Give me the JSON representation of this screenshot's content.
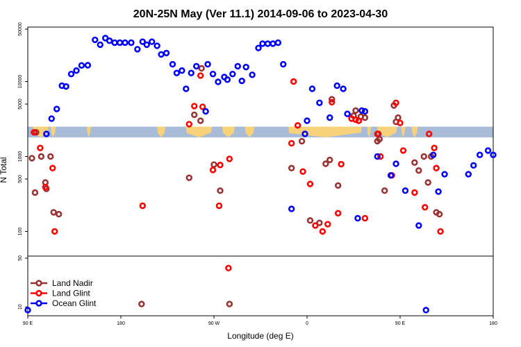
{
  "chart_data": {
    "type": "scatter",
    "title": "20N-25N May (Ver 11.1)   2014-09-06 to 2023-04-30",
    "xlabel": "Longitude (deg E)",
    "ylabel": "N Total",
    "x_ticks": [
      {
        "value": 90,
        "label": "90 E"
      },
      {
        "value": 180,
        "label": "180"
      },
      {
        "value": 270,
        "label": "90 W"
      },
      {
        "value": 360,
        "label": "0"
      },
      {
        "value": 450,
        "label": "90 E"
      },
      {
        "value": 540,
        "label": "180"
      }
    ],
    "xlim": [
      90,
      540
    ],
    "upper_panel": {
      "scale": "log",
      "ylim": [
        50,
        50000
      ],
      "y_ticks": [
        {
          "value": 100,
          "label": "100"
        },
        {
          "value": 500,
          "label": "500"
        },
        {
          "value": 1000,
          "label": "1000"
        },
        {
          "value": 5000,
          "label": "5000"
        },
        {
          "value": 10000,
          "label": "10000"
        },
        {
          "value": 50000,
          "label": "50000"
        }
      ]
    },
    "lower_panel": {
      "scale": "log",
      "ylim": [
        8,
        50
      ],
      "y_ticks": [
        {
          "value": 10,
          "label": "10"
        },
        {
          "value": 50,
          "label": "50"
        }
      ]
    },
    "land_strip": {
      "ymin": 1800,
      "ymax": 2500
    },
    "legend": {
      "position": "bottom-left"
    },
    "series": [
      {
        "name": "Land Nadir",
        "color": "#993333",
        "points": [
          [
            94,
            950
          ],
          [
            97,
            330
          ],
          [
            98,
            2100
          ],
          [
            103,
            1000
          ],
          [
            107,
            450
          ],
          [
            108,
            370
          ],
          [
            112,
            1000
          ],
          [
            115,
            180
          ],
          [
            120,
            170
          ],
          [
            200,
            11
          ],
          [
            246,
            520
          ],
          [
            251,
            3600
          ],
          [
            257,
            3000
          ],
          [
            258,
            15000
          ],
          [
            270,
            780
          ],
          [
            276,
            350
          ],
          [
            285,
            11
          ],
          [
            345,
            700
          ],
          [
            355,
            1600
          ],
          [
            363,
            140
          ],
          [
            372,
            130
          ],
          [
            378,
            800
          ],
          [
            382,
            900
          ],
          [
            384,
            5800
          ],
          [
            390,
            410
          ],
          [
            405,
            3500
          ],
          [
            407,
            4100
          ],
          [
            410,
            3000
          ],
          [
            412,
            3400
          ],
          [
            416,
            3300
          ],
          [
            428,
            1600
          ],
          [
            429,
            2000
          ],
          [
            430,
            1700
          ],
          [
            435,
            350
          ],
          [
            444,
            4800
          ],
          [
            446,
            2900
          ],
          [
            448,
            3300
          ],
          [
            464,
            830
          ],
          [
            468,
            650
          ],
          [
            473,
            1000
          ],
          [
            477,
            450
          ],
          [
            480,
            1000
          ],
          [
            485,
            180
          ],
          [
            488,
            170
          ]
        ]
      },
      {
        "name": "Land Glint",
        "color": "#ff0000",
        "points": [
          [
            96,
            2100
          ],
          [
            102,
            1300
          ],
          [
            107,
            390
          ],
          [
            114,
            700
          ],
          [
            116,
            100
          ],
          [
            201,
            220
          ],
          [
            246,
            2700
          ],
          [
            251,
            4700
          ],
          [
            257,
            12000
          ],
          [
            259,
            4600
          ],
          [
            269,
            660
          ],
          [
            275,
            220
          ],
          [
            276,
            770
          ],
          [
            284,
            36
          ],
          [
            285,
            930
          ],
          [
            345,
            1500
          ],
          [
            347,
            10000
          ],
          [
            351,
            2600
          ],
          [
            356,
            630
          ],
          [
            363,
            430
          ],
          [
            368,
            120
          ],
          [
            375,
            100
          ],
          [
            380,
            125
          ],
          [
            384,
            5300
          ],
          [
            390,
            175
          ],
          [
            393,
            790
          ],
          [
            403,
            3200
          ],
          [
            407,
            3100
          ],
          [
            410,
            3000
          ],
          [
            416,
            150
          ],
          [
            428,
            2000
          ],
          [
            431,
            1000
          ],
          [
            442,
            560
          ],
          [
            446,
            5200
          ],
          [
            450,
            2800
          ],
          [
            453,
            1200
          ],
          [
            464,
            330
          ],
          [
            474,
            210
          ],
          [
            478,
            2000
          ],
          [
            483,
            1300
          ],
          [
            485,
            700
          ],
          [
            489,
            100
          ]
        ]
      },
      {
        "name": "Ocean Glint",
        "color": "#0000ff",
        "points": [
          [
            90,
            9
          ],
          [
            108,
            2000
          ],
          [
            113,
            3200
          ],
          [
            118,
            4300
          ],
          [
            123,
            8800
          ],
          [
            127,
            8600
          ],
          [
            132,
            12600
          ],
          [
            137,
            14000
          ],
          [
            142,
            16400
          ],
          [
            148,
            16500
          ],
          [
            155,
            36000
          ],
          [
            160,
            31000
          ],
          [
            165,
            38000
          ],
          [
            169,
            35000
          ],
          [
            174,
            33000
          ],
          [
            179,
            33000
          ],
          [
            184,
            33000
          ],
          [
            190,
            33000
          ],
          [
            196,
            27000
          ],
          [
            201,
            34000
          ],
          [
            205,
            31000
          ],
          [
            210,
            34000
          ],
          [
            215,
            30000
          ],
          [
            219,
            23000
          ],
          [
            224,
            24000
          ],
          [
            230,
            17000
          ],
          [
            234,
            13000
          ],
          [
            239,
            14000
          ],
          [
            243,
            8000
          ],
          [
            248,
            13000
          ],
          [
            253,
            16000
          ],
          [
            262,
            4000
          ],
          [
            264,
            17000
          ],
          [
            269,
            12600
          ],
          [
            274,
            9900
          ],
          [
            280,
            11500
          ],
          [
            283,
            10600
          ],
          [
            288,
            12600
          ],
          [
            293,
            16000
          ],
          [
            297,
            10200
          ],
          [
            301,
            15600
          ],
          [
            307,
            12300
          ],
          [
            313,
            28000
          ],
          [
            317,
            32000
          ],
          [
            322,
            32000
          ],
          [
            327,
            32000
          ],
          [
            332,
            33000
          ],
          [
            337,
            17000
          ],
          [
            345,
            200
          ],
          [
            358,
            2000
          ],
          [
            360,
            3000
          ],
          [
            365,
            8000
          ],
          [
            372,
            5200
          ],
          [
            382,
            3300
          ],
          [
            389,
            8800
          ],
          [
            395,
            8000
          ],
          [
            399,
            3700
          ],
          [
            409,
            150
          ],
          [
            413,
            4100
          ],
          [
            416,
            4000
          ],
          [
            428,
            1000
          ],
          [
            441,
            560
          ],
          [
            446,
            800
          ],
          [
            455,
            350
          ],
          [
            468,
            120
          ],
          [
            475,
            9
          ],
          [
            482,
            1050
          ],
          [
            487,
            340
          ],
          [
            493,
            580
          ],
          [
            516,
            580
          ],
          [
            521,
            760
          ],
          [
            527,
            1050
          ],
          [
            535,
            1200
          ],
          [
            540,
            1050
          ]
        ]
      }
    ]
  }
}
